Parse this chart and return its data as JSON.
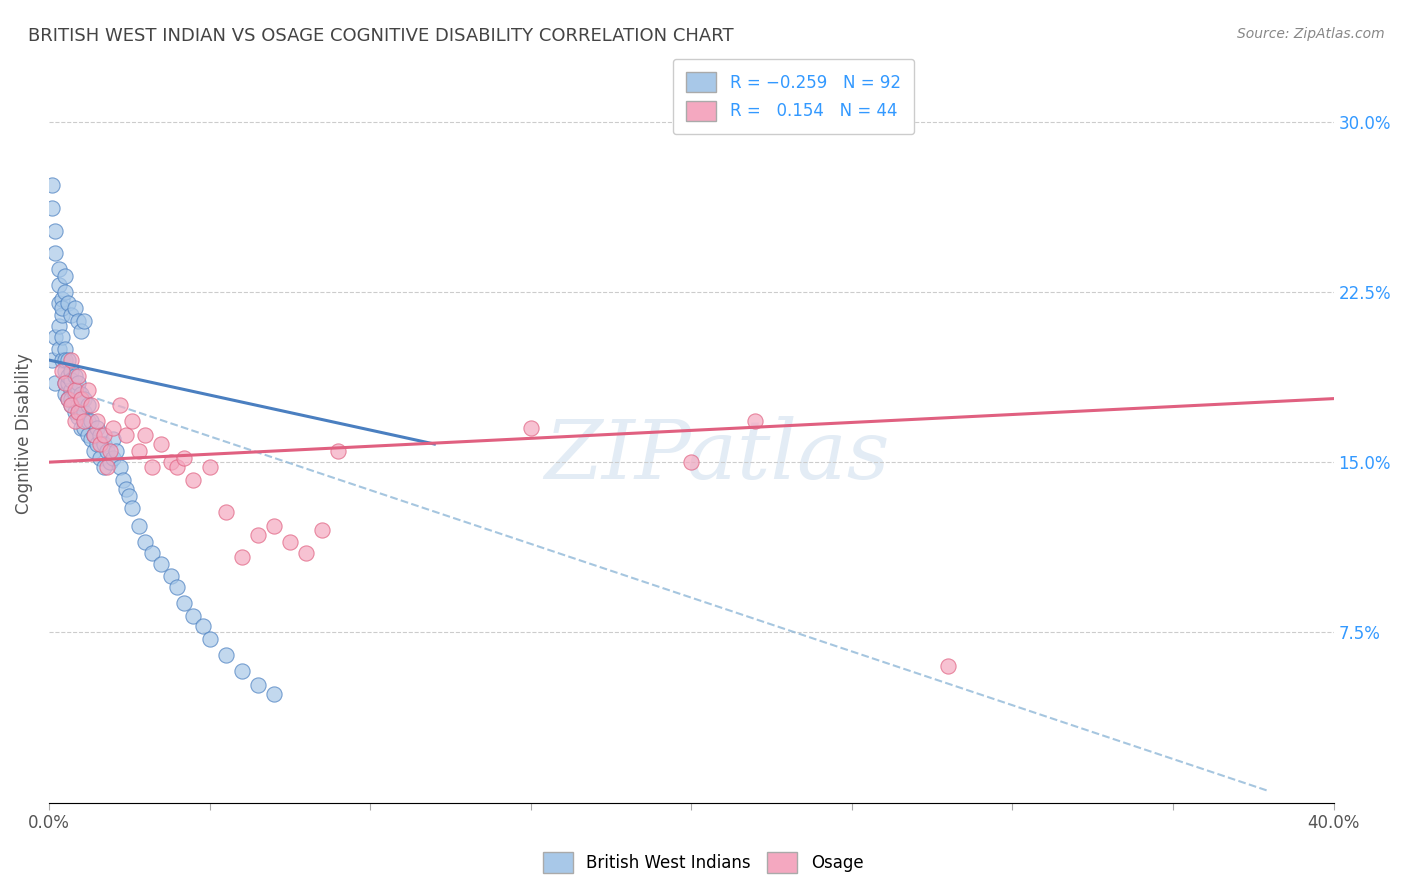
{
  "title": "BRITISH WEST INDIAN VS OSAGE COGNITIVE DISABILITY CORRELATION CHART",
  "source": "Source: ZipAtlas.com",
  "ylabel": "Cognitive Disability",
  "ytick_values": [
    0.075,
    0.15,
    0.225,
    0.3
  ],
  "xlim": [
    0.0,
    0.4
  ],
  "ylim": [
    0.0,
    0.325
  ],
  "color_blue": "#a8c8e8",
  "color_pink": "#f4a8c0",
  "line_blue": "#4a7fc0",
  "line_pink": "#e06080",
  "line_dash_color": "#90b8d8",
  "watermark": "ZIPatlas",
  "blue_scatter_x": [
    0.001,
    0.002,
    0.002,
    0.003,
    0.003,
    0.003,
    0.004,
    0.004,
    0.004,
    0.005,
    0.005,
    0.005,
    0.005,
    0.005,
    0.006,
    0.006,
    0.006,
    0.006,
    0.007,
    0.007,
    0.007,
    0.007,
    0.007,
    0.008,
    0.008,
    0.008,
    0.009,
    0.009,
    0.009,
    0.009,
    0.01,
    0.01,
    0.01,
    0.01,
    0.011,
    0.011,
    0.011,
    0.012,
    0.012,
    0.012,
    0.013,
    0.013,
    0.014,
    0.014,
    0.015,
    0.015,
    0.016,
    0.016,
    0.017,
    0.017,
    0.018,
    0.019,
    0.02,
    0.02,
    0.021,
    0.022,
    0.023,
    0.024,
    0.025,
    0.026,
    0.028,
    0.03,
    0.032,
    0.035,
    0.038,
    0.04,
    0.042,
    0.045,
    0.048,
    0.05,
    0.055,
    0.06,
    0.065,
    0.07,
    0.001,
    0.001,
    0.002,
    0.002,
    0.003,
    0.003,
    0.004,
    0.004,
    0.005,
    0.005,
    0.006,
    0.007,
    0.008,
    0.009,
    0.01,
    0.011
  ],
  "blue_scatter_y": [
    0.195,
    0.185,
    0.205,
    0.22,
    0.21,
    0.2,
    0.215,
    0.205,
    0.195,
    0.2,
    0.19,
    0.185,
    0.195,
    0.18,
    0.195,
    0.185,
    0.178,
    0.188,
    0.19,
    0.182,
    0.175,
    0.186,
    0.178,
    0.188,
    0.18,
    0.172,
    0.182,
    0.175,
    0.185,
    0.17,
    0.18,
    0.172,
    0.165,
    0.176,
    0.172,
    0.165,
    0.178,
    0.168,
    0.175,
    0.162,
    0.168,
    0.16,
    0.162,
    0.155,
    0.165,
    0.158,
    0.162,
    0.152,
    0.158,
    0.148,
    0.155,
    0.15,
    0.16,
    0.152,
    0.155,
    0.148,
    0.142,
    0.138,
    0.135,
    0.13,
    0.122,
    0.115,
    0.11,
    0.105,
    0.1,
    0.095,
    0.088,
    0.082,
    0.078,
    0.072,
    0.065,
    0.058,
    0.052,
    0.048,
    0.272,
    0.262,
    0.252,
    0.242,
    0.235,
    0.228,
    0.222,
    0.218,
    0.232,
    0.225,
    0.22,
    0.215,
    0.218,
    0.212,
    0.208,
    0.212
  ],
  "pink_scatter_x": [
    0.004,
    0.005,
    0.006,
    0.007,
    0.007,
    0.008,
    0.008,
    0.009,
    0.009,
    0.01,
    0.011,
    0.012,
    0.013,
    0.014,
    0.015,
    0.016,
    0.017,
    0.018,
    0.019,
    0.02,
    0.022,
    0.024,
    0.026,
    0.028,
    0.03,
    0.032,
    0.035,
    0.038,
    0.04,
    0.042,
    0.045,
    0.05,
    0.055,
    0.06,
    0.065,
    0.07,
    0.075,
    0.08,
    0.085,
    0.09,
    0.15,
    0.2,
    0.22,
    0.28
  ],
  "pink_scatter_y": [
    0.19,
    0.185,
    0.178,
    0.195,
    0.175,
    0.182,
    0.168,
    0.188,
    0.172,
    0.178,
    0.168,
    0.182,
    0.175,
    0.162,
    0.168,
    0.158,
    0.162,
    0.148,
    0.155,
    0.165,
    0.175,
    0.162,
    0.168,
    0.155,
    0.162,
    0.148,
    0.158,
    0.15,
    0.148,
    0.152,
    0.142,
    0.148,
    0.128,
    0.108,
    0.118,
    0.122,
    0.115,
    0.11,
    0.12,
    0.155,
    0.165,
    0.15,
    0.168,
    0.06
  ],
  "blue_line_x": [
    0.0,
    0.12
  ],
  "blue_line_y": [
    0.195,
    0.158
  ],
  "pink_line_x": [
    0.0,
    0.4
  ],
  "pink_line_y": [
    0.15,
    0.178
  ],
  "dash_line_x": [
    0.015,
    0.38
  ],
  "dash_line_y": [
    0.178,
    0.005
  ]
}
